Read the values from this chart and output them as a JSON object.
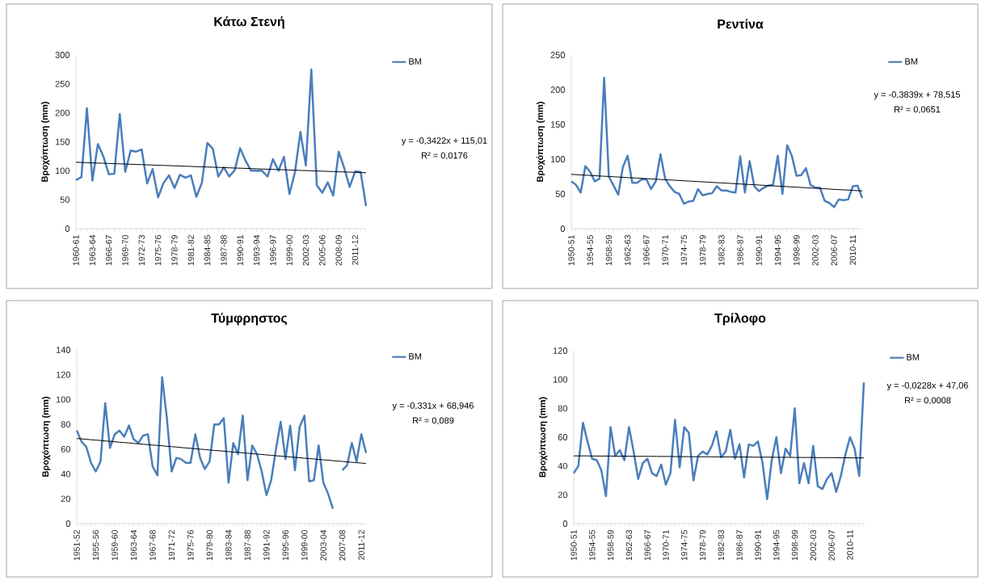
{
  "chart_data": [
    {
      "type": "line",
      "title": "Κάτω Στενή",
      "ylabel": "Βροχόπτωση (mm)",
      "legend": "right",
      "ylim": [
        0,
        300
      ],
      "yticks": [
        0,
        50,
        100,
        150,
        200,
        250,
        300
      ],
      "categories": [
        "1960-61",
        null,
        null,
        "1963-64",
        null,
        null,
        "1966-67",
        null,
        null,
        "1969-70",
        null,
        null,
        "1972-73",
        null,
        null,
        "1975-76",
        null,
        null,
        "1978-79",
        null,
        null,
        "1981-82",
        null,
        null,
        "1984-85",
        null,
        null,
        "1987-88",
        null,
        null,
        "1990-91",
        null,
        null,
        "1993-94",
        null,
        null,
        "1996-97",
        null,
        null,
        "1999-00",
        null,
        null,
        "2002-03",
        null,
        null,
        "2005-06",
        null,
        null,
        "2008-09",
        null,
        null,
        "2011-12",
        null,
        null
      ],
      "series": [
        {
          "name": "ΒΜ",
          "color": "#4a7ebb",
          "values": [
            84,
            89,
            208,
            83,
            146,
            125,
            94,
            95,
            198,
            98,
            135,
            133,
            137,
            78,
            103,
            54,
            79,
            92,
            70,
            93,
            88,
            92,
            55,
            79,
            148,
            138,
            90,
            106,
            90,
            101,
            139,
            117,
            100,
            100,
            100,
            90,
            120,
            100,
            124,
            60,
            97,
            167,
            109,
            275,
            75,
            62,
            80,
            57,
            133,
            105,
            72,
            99,
            98,
            39
          ]
        },
        {
          "color": "#000000",
          "values": [
            114.7,
            114.3,
            114.0,
            113.6,
            113.3,
            113.0,
            112.6,
            112.3,
            111.9,
            111.6,
            111.2,
            110.9,
            110.6,
            110.2,
            109.9,
            109.5,
            109.2,
            108.9,
            108.5,
            108.2,
            107.8,
            107.5,
            107.1,
            106.8,
            106.5,
            106.1,
            105.8,
            105.4,
            105.1,
            104.7,
            104.4,
            104.1,
            103.7,
            103.4,
            103.0,
            102.7,
            102.3,
            102.0,
            101.7,
            101.3,
            101.0,
            100.6,
            100.3,
            100.0,
            99.6,
            99.3,
            98.9,
            98.6,
            98.2,
            97.9,
            97.6,
            97.2,
            96.9,
            96.5
          ]
        }
      ],
      "annotations": [
        "y = -0,3422x + 115,01",
        "R² = 0,0176"
      ]
    },
    {
      "type": "line",
      "title": "Ρεντίνα",
      "ylabel": "Βροχόπτωση (mm)",
      "legend": "right",
      "ylim": [
        0,
        250
      ],
      "yticks": [
        0,
        50,
        100,
        150,
        200,
        250
      ],
      "categories": [
        "1950-51",
        null,
        null,
        null,
        "1954-55",
        null,
        null,
        null,
        "1958-59",
        null,
        null,
        null,
        "1962-63",
        null,
        null,
        null,
        "1966-67",
        null,
        null,
        null,
        "1970-71",
        null,
        null,
        null,
        "1974-75",
        null,
        null,
        null,
        "1978-79",
        null,
        null,
        null,
        "1982-83",
        null,
        null,
        null,
        "1986-87",
        null,
        null,
        null,
        "1990-91",
        null,
        null,
        null,
        "1994-95",
        null,
        null,
        null,
        "1998-99",
        null,
        null,
        null,
        "2002-03",
        null,
        null,
        null,
        "2006-07",
        null,
        null,
        null,
        "2010-11",
        null,
        null
      ],
      "series": [
        {
          "name": "ΒΜ",
          "color": "#4a7ebb",
          "values": [
            68,
            63,
            52,
            90,
            82,
            68,
            72,
            217,
            75,
            62,
            49,
            89,
            105,
            66,
            66,
            71,
            71,
            57,
            68,
            107,
            72,
            61,
            53,
            50,
            36,
            39,
            40,
            57,
            48,
            50,
            51,
            61,
            55,
            55,
            53,
            52,
            104,
            52,
            97,
            61,
            54,
            59,
            62,
            63,
            105,
            50,
            120,
            105,
            76,
            77,
            87,
            63,
            59,
            59,
            40,
            37,
            31,
            42,
            41,
            42,
            61,
            62,
            44
          ]
        },
        {
          "color": "#000000",
          "values": [
            78.1,
            77.8,
            77.4,
            77.0,
            76.6,
            76.2,
            75.8,
            75.4,
            75.1,
            74.7,
            74.3,
            73.9,
            73.5,
            73.1,
            72.8,
            72.4,
            72.0,
            71.6,
            71.2,
            70.8,
            70.5,
            70.1,
            69.7,
            69.3,
            68.9,
            68.5,
            68.2,
            67.8,
            67.4,
            67.0,
            66.6,
            66.2,
            65.9,
            65.5,
            65.1,
            64.7,
            64.3,
            63.9,
            63.5,
            63.2,
            62.8,
            62.4,
            62.0,
            61.6,
            61.2,
            60.9,
            60.5,
            60.1,
            59.7,
            59.3,
            58.9,
            58.6,
            58.2,
            57.8,
            57.4,
            57.0,
            56.6,
            56.2,
            55.9,
            55.5,
            55.1,
            54.7,
            54.3
          ]
        }
      ],
      "annotations": [
        "y = -0,3839x + 78,515",
        "R² = 0,0651"
      ]
    },
    {
      "type": "line",
      "title": "Τύμφρηστος",
      "ylabel": "Βροχόπτωση (mm)",
      "legend": "right",
      "ylim": [
        0,
        140
      ],
      "yticks": [
        0,
        20,
        40,
        60,
        80,
        100,
        120,
        140
      ],
      "categories": [
        "1951-52",
        null,
        null,
        null,
        "1955-56",
        null,
        null,
        null,
        "1959-60",
        null,
        null,
        null,
        "1963-64",
        null,
        null,
        null,
        "1967-68",
        null,
        null,
        null,
        "1971-72",
        null,
        null,
        null,
        "1975-76",
        null,
        null,
        null,
        "1979-80",
        null,
        null,
        null,
        "1983-84",
        null,
        null,
        null,
        "1987-88",
        null,
        null,
        null,
        "1991-92",
        null,
        null,
        null,
        "1995-96",
        null,
        null,
        null,
        "1999-00",
        null,
        null,
        null,
        "2003-04",
        null,
        null,
        null,
        "2007-08",
        null,
        null,
        null,
        "2011-12",
        null
      ],
      "series": [
        {
          "name": "ΒΜ",
          "color": "#4a7ebb",
          "values": [
            75,
            66,
            62,
            49,
            42,
            50,
            97,
            61,
            72,
            75,
            70,
            79,
            68,
            65,
            71,
            72,
            46,
            39,
            118,
            85,
            42,
            53,
            52,
            49,
            49,
            72,
            53,
            44,
            50,
            80,
            80,
            85,
            33,
            65,
            56,
            87,
            35,
            63,
            56,
            42,
            23,
            35,
            60,
            82,
            52,
            79,
            43,
            78,
            87,
            34,
            35,
            63,
            33,
            24,
            12,
            null,
            43,
            47,
            65,
            50,
            72,
            57
          ]
        },
        {
          "color": "#000000",
          "values": [
            68.6,
            68.3,
            68.0,
            67.6,
            67.3,
            67.0,
            66.6,
            66.3,
            66.0,
            65.6,
            65.3,
            65.0,
            64.6,
            64.3,
            64.0,
            63.6,
            63.3,
            63.0,
            62.7,
            62.3,
            62.0,
            61.7,
            61.3,
            61.0,
            60.7,
            60.3,
            60.0,
            59.7,
            59.3,
            59.0,
            58.7,
            58.4,
            58.0,
            57.7,
            57.4,
            57.0,
            56.7,
            56.4,
            56.0,
            55.7,
            55.4,
            55.0,
            54.7,
            54.4,
            54.1,
            53.7,
            53.4,
            53.1,
            52.7,
            52.4,
            52.1,
            51.7,
            51.4,
            51.1,
            50.7,
            50.4,
            50.1,
            49.7,
            49.4,
            49.1,
            48.8,
            48.4
          ]
        }
      ],
      "annotations": [
        "y = -0,331x + 68,946",
        "R² = 0,089"
      ]
    },
    {
      "type": "line",
      "title": "Τρίλοφο",
      "ylabel": "Βροχόπτωση (mm)",
      "legend": "right",
      "ylim": [
        0,
        120
      ],
      "yticks": [
        0,
        20,
        40,
        60,
        80,
        100,
        120
      ],
      "categories": [
        "1950-51",
        null,
        null,
        null,
        "1954-55",
        null,
        null,
        null,
        "1958-59",
        null,
        null,
        null,
        "1962-63",
        null,
        null,
        null,
        "1966-67",
        null,
        null,
        null,
        "1970-71",
        null,
        null,
        null,
        "1974-75",
        null,
        null,
        null,
        "1978-79",
        null,
        null,
        null,
        "1982-83",
        null,
        null,
        null,
        "1986-87",
        null,
        null,
        null,
        "1990-91",
        null,
        null,
        null,
        "1994-95",
        null,
        null,
        null,
        "1998-99",
        null,
        null,
        null,
        "2002-03",
        null,
        null,
        null,
        "2006-07",
        null,
        null,
        null,
        "2010-11",
        null,
        null,
        null
      ],
      "series": [
        {
          "name": "ΒΜ",
          "color": "#4a7ebb",
          "values": [
            35,
            40,
            70,
            57,
            45,
            44,
            37,
            19,
            67,
            47,
            51,
            44,
            67,
            50,
            31,
            42,
            45,
            35,
            33,
            41,
            27,
            35,
            72,
            39,
            67,
            63,
            30,
            47,
            50,
            48,
            54,
            64,
            46,
            50,
            65,
            45,
            55,
            32,
            55,
            54,
            57,
            42,
            17,
            44,
            60,
            35,
            52,
            47,
            80,
            28,
            42,
            28,
            54,
            26,
            24,
            31,
            35,
            22,
            33,
            48,
            60,
            52,
            33,
            98
          ]
        },
        {
          "color": "#000000",
          "values": [
            47.0,
            47.0,
            47.0,
            47.0,
            46.9,
            46.9,
            46.9,
            46.9,
            46.9,
            46.8,
            46.8,
            46.8,
            46.8,
            46.7,
            46.7,
            46.7,
            46.7,
            46.7,
            46.6,
            46.6,
            46.6,
            46.6,
            46.5,
            46.5,
            46.5,
            46.5,
            46.4,
            46.4,
            46.4,
            46.4,
            46.4,
            46.3,
            46.3,
            46.3,
            46.3,
            46.2,
            46.2,
            46.2,
            46.2,
            46.1,
            46.1,
            46.1,
            46.1,
            46.1,
            46.0,
            46.0,
            46.0,
            46.0,
            45.9,
            45.9,
            45.9,
            45.9,
            45.9,
            45.8,
            45.8,
            45.8,
            45.8,
            45.7,
            45.7,
            45.7,
            45.7,
            45.6,
            45.6,
            45.6
          ]
        }
      ],
      "annotations": [
        "y = -0,0228x + 47,06",
        "R² = 0,0008"
      ]
    }
  ]
}
